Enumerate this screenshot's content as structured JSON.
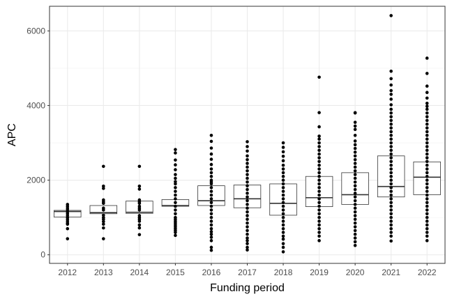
{
  "chart_data": {
    "type": "box",
    "xlabel": "Funding period",
    "ylabel": "APC",
    "ylim": [
      -230,
      6660
    ],
    "yticks": [
      0,
      2000,
      4000,
      6000
    ],
    "grid": true,
    "categories": [
      "2012",
      "2013",
      "2014",
      "2015",
      "2016",
      "2017",
      "2018",
      "2019",
      "2020",
      "2021",
      "2022"
    ],
    "boxes": [
      {
        "category": "2012",
        "q1": 1010,
        "median": 1160,
        "q3": 1190,
        "whisker_low": 1010,
        "whisker_high": 1190
      },
      {
        "category": "2013",
        "q1": 1100,
        "median": 1130,
        "q3": 1320,
        "whisker_low": 1100,
        "whisker_high": 1320
      },
      {
        "category": "2014",
        "q1": 1110,
        "median": 1140,
        "q3": 1440,
        "whisker_low": 1110,
        "whisker_high": 1440
      },
      {
        "category": "2015",
        "q1": 1300,
        "median": 1320,
        "q3": 1480,
        "whisker_low": 1300,
        "whisker_high": 1480
      },
      {
        "category": "2016",
        "q1": 1320,
        "median": 1450,
        "q3": 1850,
        "whisker_low": 1320,
        "whisker_high": 1850
      },
      {
        "category": "2017",
        "q1": 1260,
        "median": 1500,
        "q3": 1870,
        "whisker_low": 1260,
        "whisker_high": 1870
      },
      {
        "category": "2018",
        "q1": 1060,
        "median": 1380,
        "q3": 1900,
        "whisker_low": 1060,
        "whisker_high": 1900
      },
      {
        "category": "2019",
        "q1": 1290,
        "median": 1530,
        "q3": 2100,
        "whisker_low": 1290,
        "whisker_high": 2100
      },
      {
        "category": "2020",
        "q1": 1350,
        "median": 1610,
        "q3": 2200,
        "whisker_low": 1350,
        "whisker_high": 2200
      },
      {
        "category": "2021",
        "q1": 1550,
        "median": 1830,
        "q3": 2650,
        "whisker_low": 1550,
        "whisker_high": 2650
      },
      {
        "category": "2022",
        "q1": 1610,
        "median": 2080,
        "q3": 2490,
        "whisker_low": 1610,
        "whisker_high": 2490
      }
    ],
    "points": [
      {
        "category": "2012",
        "values": [
          1350,
          1300,
          1250,
          1200,
          1150,
          1100,
          1050,
          1000,
          950,
          900,
          850,
          820,
          700,
          430
        ]
      },
      {
        "category": "2013",
        "values": [
          2370,
          1840,
          1780,
          1470,
          1420,
          1380,
          1250,
          1200,
          1060,
          1000,
          950,
          890,
          820,
          720,
          430
        ]
      },
      {
        "category": "2014",
        "values": [
          2370,
          1840,
          1760,
          1470,
          1420,
          1380,
          1300,
          1250,
          1200,
          1050,
          1000,
          950,
          900,
          800,
          720,
          540
        ]
      },
      {
        "category": "2015",
        "values": [
          2820,
          2730,
          2540,
          2410,
          2280,
          2150,
          2050,
          1960,
          1900,
          1800,
          1700,
          1600,
          1500,
          1400,
          1300,
          1200,
          1100,
          1000,
          950,
          900,
          850,
          800,
          750,
          700,
          650,
          600,
          520
        ]
      },
      {
        "category": "2016",
        "values": [
          3200,
          3040,
          2860,
          2700,
          2560,
          2420,
          2300,
          2200,
          2100,
          2000,
          1950,
          1900,
          1800,
          1700,
          1600,
          1500,
          1400,
          1300,
          1200,
          1100,
          1000,
          900,
          800,
          700,
          620,
          550,
          470,
          380,
          200,
          120
        ]
      },
      {
        "category": "2017",
        "values": [
          3030,
          2900,
          2780,
          2650,
          2550,
          2450,
          2350,
          2250,
          2150,
          2050,
          1950,
          1850,
          1750,
          1650,
          1550,
          1450,
          1350,
          1250,
          1150,
          1050,
          950,
          850,
          750,
          650,
          550,
          450,
          380,
          300,
          200,
          130
        ]
      },
      {
        "category": "2018",
        "values": [
          3000,
          2880,
          2760,
          2640,
          2520,
          2400,
          2300,
          2200,
          2100,
          2000,
          1900,
          1800,
          1700,
          1600,
          1500,
          1400,
          1300,
          1200,
          1100,
          1000,
          900,
          800,
          700,
          600,
          500,
          420,
          300,
          200,
          80
        ]
      },
      {
        "category": "2019",
        "values": [
          4760,
          3810,
          3430,
          3180,
          3100,
          3000,
          2900,
          2800,
          2700,
          2600,
          2500,
          2400,
          2300,
          2200,
          2100,
          2000,
          1900,
          1800,
          1700,
          1600,
          1500,
          1400,
          1300,
          1200,
          1100,
          1000,
          900,
          800,
          700,
          600,
          500,
          380
        ]
      },
      {
        "category": "2020",
        "values": [
          3810,
          3800,
          3550,
          3450,
          3360,
          3200,
          3050,
          2950,
          2850,
          2750,
          2650,
          2550,
          2450,
          2350,
          2250,
          2150,
          2050,
          1950,
          1850,
          1750,
          1650,
          1550,
          1450,
          1350,
          1250,
          1150,
          1050,
          950,
          850,
          750,
          650,
          550,
          450,
          350,
          250
        ]
      },
      {
        "category": "2021",
        "values": [
          6410,
          4920,
          4720,
          4550,
          4400,
          4300,
          4170,
          4020,
          3900,
          3800,
          3700,
          3600,
          3500,
          3400,
          3300,
          3200,
          3100,
          3000,
          2900,
          2800,
          2700,
          2600,
          2500,
          2400,
          2300,
          2200,
          2100,
          2000,
          1900,
          1800,
          1700,
          1600,
          1500,
          1400,
          1300,
          1200,
          1100,
          1000,
          900,
          800,
          700,
          600,
          500,
          370
        ]
      },
      {
        "category": "2022",
        "values": [
          5270,
          4860,
          4520,
          4350,
          4200,
          4060,
          3980,
          3900,
          3800,
          3700,
          3600,
          3500,
          3400,
          3300,
          3200,
          3100,
          3000,
          2900,
          2800,
          2700,
          2600,
          2500,
          2400,
          2300,
          2200,
          2100,
          2000,
          1900,
          1800,
          1700,
          1600,
          1500,
          1400,
          1300,
          1200,
          1100,
          1000,
          900,
          800,
          700,
          600,
          500,
          380
        ]
      }
    ]
  }
}
